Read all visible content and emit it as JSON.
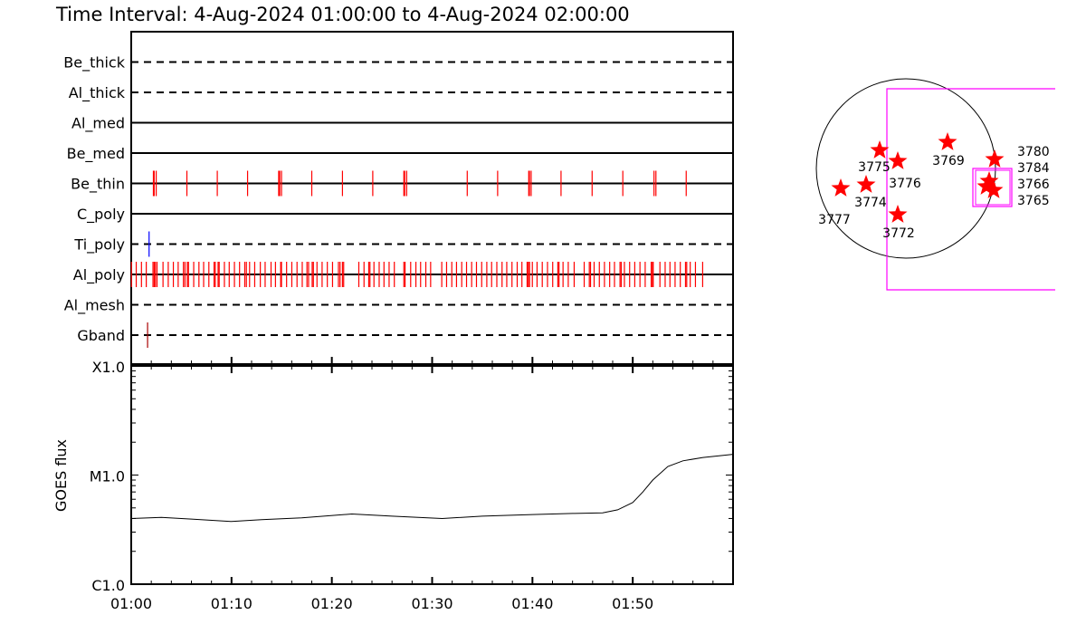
{
  "title": "Time Interval:  4-Aug-2024 01:00:00 to  4-Aug-2024 02:00:00",
  "chart_data": [
    {
      "type": "timeline",
      "x_unit": "minutes after 01:00",
      "xlim": [
        0,
        60
      ],
      "rows": [
        {
          "name": "Be_thick",
          "line": "dashed",
          "ticks": []
        },
        {
          "name": "Al_thick",
          "line": "dashed",
          "ticks": []
        },
        {
          "name": "Al_med",
          "line": "solid",
          "ticks": []
        },
        {
          "name": "Be_med",
          "line": "solid",
          "ticks": []
        },
        {
          "name": "Be_thin",
          "line": "solid",
          "color": "#ff0000",
          "ticks": [
            2.21,
            2.29,
            2.49,
            5.55,
            8.58,
            11.6,
            14.7,
            14.8,
            14.98,
            18.0,
            21.06,
            24.08,
            27.18,
            27.26,
            27.46,
            33.5,
            36.53,
            39.63,
            39.7,
            39.87,
            42.85,
            45.95,
            49.01,
            52.12,
            52.31,
            55.33
          ]
        },
        {
          "name": "C_poly",
          "line": "solid",
          "ticks": []
        },
        {
          "name": "Ti_poly",
          "line": "dashed",
          "color": "#0000ff",
          "ticks": [
            1.78
          ]
        },
        {
          "name": "Al_poly",
          "line": "solid",
          "color": "#ff0000",
          "ticks": [
            0.03,
            0.5,
            1.02,
            1.5,
            2.17,
            2.29,
            2.41,
            2.57,
            3.17,
            3.69,
            4.2,
            4.68,
            5.2,
            5.36,
            5.59,
            5.71,
            6.23,
            6.75,
            7.22,
            7.74,
            8.26,
            8.38,
            8.66,
            8.77,
            9.29,
            9.77,
            10.29,
            10.8,
            11.32,
            11.48,
            11.8,
            12.31,
            12.87,
            13.35,
            13.94,
            14.38,
            14.9,
            14.98,
            15.49,
            16.01,
            16.53,
            17.05,
            17.52,
            17.68,
            18.04,
            18.16,
            18.52,
            19.03,
            19.55,
            20.07,
            20.66,
            20.82,
            21.06,
            21.18,
            22.69,
            23.21,
            23.68,
            23.8,
            24.2,
            24.72,
            25.2,
            25.71,
            26.23,
            27.18,
            27.3,
            27.86,
            28.38,
            28.85,
            29.37,
            29.85,
            30.96,
            31.44,
            31.96,
            32.43,
            32.95,
            33.43,
            33.94,
            34.42,
            34.94,
            35.45,
            35.93,
            36.45,
            36.97,
            37.44,
            37.96,
            38.48,
            38.95,
            39.47,
            39.59,
            39.71,
            39.99,
            40.46,
            40.98,
            41.5,
            42.02,
            42.53,
            42.65,
            43.05,
            43.57,
            44.16,
            45.16,
            45.67,
            45.79,
            46.15,
            46.67,
            47.18,
            47.7,
            48.18,
            48.73,
            48.85,
            49.17,
            49.69,
            50.2,
            50.72,
            51.24,
            51.84,
            51.96,
            52.04,
            52.71,
            53.23,
            53.71,
            54.22,
            54.74,
            55.26,
            55.38,
            55.73,
            56.25,
            56.97
          ]
        },
        {
          "name": "Al_mesh",
          "line": "dashed",
          "ticks": []
        },
        {
          "name": "Gband",
          "line": "dashed",
          "color": "#aa0000",
          "ticks": [
            1.63
          ]
        }
      ]
    },
    {
      "type": "line",
      "ylabel": "GOES flux",
      "yscale": "log",
      "ylim": [
        1e-06,
        0.0001
      ],
      "ytick_labels": [
        {
          "value": 1e-06,
          "label": "C1.0"
        },
        {
          "value": 1e-05,
          "label": "M1.0"
        },
        {
          "value": 0.0001,
          "label": "X1.0"
        }
      ],
      "xtick_labels": [
        "01:00",
        "01:10",
        "01:20",
        "01:30",
        "01:40",
        "01:50"
      ],
      "series": [
        {
          "color": "#000000",
          "x": [
            0,
            3,
            6,
            10,
            13,
            17,
            22,
            26,
            31,
            35,
            40,
            44,
            47,
            48.5,
            50,
            51,
            52,
            53.5,
            55,
            57,
            60
          ],
          "y": [
            4e-06,
            4.1e-06,
            3.95e-06,
            3.75e-06,
            3.9e-06,
            4.05e-06,
            4.4e-06,
            4.2e-06,
            4e-06,
            4.2e-06,
            4.35e-06,
            4.45e-06,
            4.5e-06,
            4.8e-06,
            5.6e-06,
            7e-06,
            9e-06,
            1.2e-05,
            1.35e-05,
            1.45e-05,
            1.55e-05
          ]
        }
      ]
    },
    {
      "type": "scatter",
      "regions": [
        {
          "label": "3769",
          "color": "#ff0000"
        },
        {
          "label": "3775",
          "color": "#ff0000"
        },
        {
          "label": "3776",
          "color": "#ff0000"
        },
        {
          "label": "3774",
          "color": "#ff0000"
        },
        {
          "label": "3777",
          "color": "#ff0000"
        },
        {
          "label": "3772",
          "color": "#ff0000"
        },
        {
          "label": "3780",
          "color": "#ff0000"
        },
        {
          "label": "3784",
          "color": "#ff0000"
        },
        {
          "label": "3766",
          "color": "#ff0000"
        },
        {
          "label": "3765",
          "color": "#ff0000"
        }
      ],
      "fov_color": "#ff00ff",
      "limb_color": "#000000"
    }
  ]
}
